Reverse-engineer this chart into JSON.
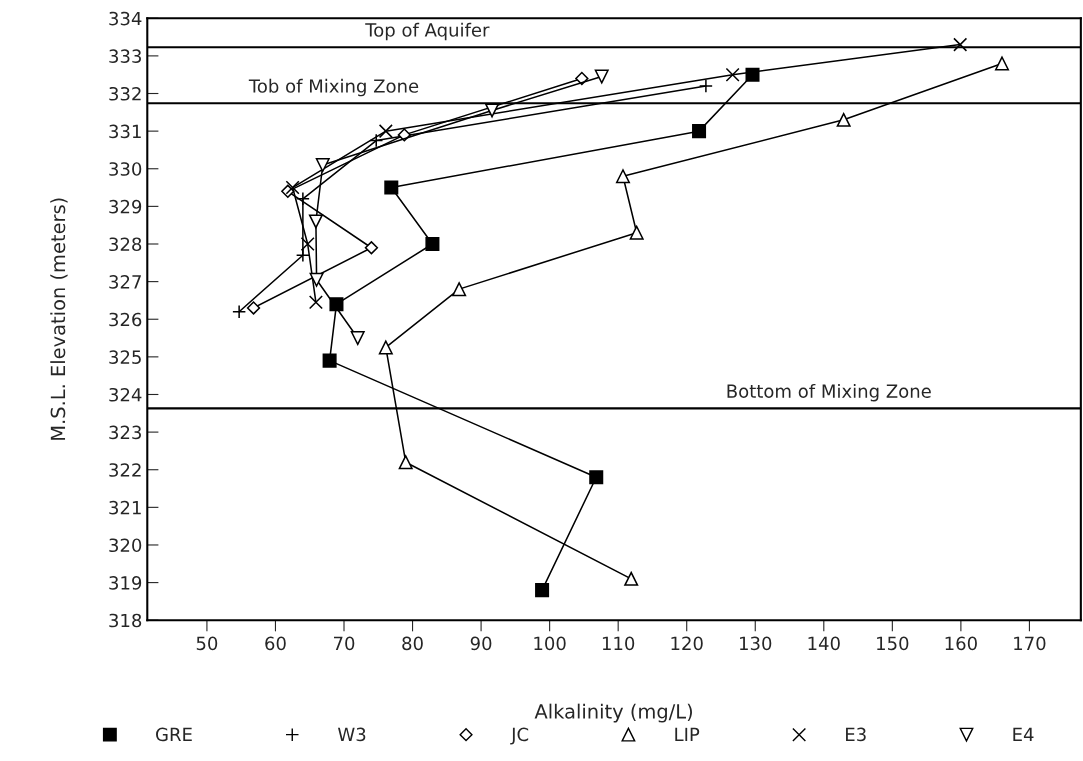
{
  "chart_data": {
    "type": "line",
    "xlabel": "Alkalinity (mg/L)",
    "ylabel": "M.S.L. Elevation (meters)",
    "xlim": [
      41.3,
      177.5
    ],
    "xticks": [
      50,
      60,
      70,
      80,
      90,
      100,
      110,
      120,
      130,
      140,
      150,
      160,
      170
    ],
    "ylim": [
      318,
      334
    ],
    "yticks": [
      318,
      319,
      320,
      321,
      322,
      323,
      324,
      325,
      326,
      327,
      328,
      329,
      330,
      331,
      332,
      333,
      334
    ],
    "grid": false,
    "legend": "bottom",
    "line_style": "solid",
    "series": [
      {
        "name": "GRE",
        "color": "#000000",
        "marker": "square",
        "x": [
          129.6,
          121.8,
          76.9,
          82.9,
          68.9,
          67.9,
          106.8,
          98.9
        ],
        "values": [
          332.5,
          331.0,
          329.5,
          328.0,
          326.4,
          324.9,
          321.8,
          318.8
        ]
      },
      {
        "name": "W3",
        "color": "#000000",
        "marker": "plus",
        "x": [
          122.8,
          74.7,
          64.0,
          64.0,
          54.7
        ],
        "values": [
          332.2,
          330.75,
          329.2,
          327.7,
          326.2
        ]
      },
      {
        "name": "JC",
        "color": "#000000",
        "marker": "diamond",
        "x": [
          104.7,
          78.8,
          61.8,
          74.0,
          56.8
        ],
        "values": [
          332.4,
          330.9,
          329.4,
          327.9,
          326.3
        ]
      },
      {
        "name": "LIP",
        "color": "#000000",
        "marker": "triangle",
        "x": [
          166.0,
          142.9,
          110.7,
          112.7,
          86.8,
          76.1,
          79.0,
          111.9
        ],
        "values": [
          332.8,
          331.3,
          329.8,
          328.3,
          326.8,
          325.25,
          322.2,
          319.1
        ]
      },
      {
        "name": "E3",
        "color": "#000000",
        "marker": "cross",
        "x": [
          159.9,
          126.7,
          76.1,
          62.5,
          64.7,
          65.9
        ],
        "values": [
          333.3,
          332.5,
          331.0,
          329.5,
          328.0,
          326.45
        ]
      },
      {
        "name": "E4",
        "color": "#000000",
        "marker": "triangle_down",
        "x": [
          107.6,
          91.6,
          66.9,
          65.9,
          66.0,
          72.0
        ],
        "values": [
          332.45,
          331.55,
          330.1,
          328.6,
          327.05,
          325.5
        ]
      }
    ],
    "ref_lines": [
      {
        "axis": "y",
        "value": 333.23,
        "color": "#000000",
        "label": "Top of Aquifer"
      },
      {
        "axis": "y",
        "value": 331.74,
        "color": "#000000",
        "label": "Tob of Mixing Zone"
      },
      {
        "axis": "y",
        "value": 323.63,
        "color": "#000000",
        "label": "Bottom of Mixing Zone"
      }
    ]
  }
}
